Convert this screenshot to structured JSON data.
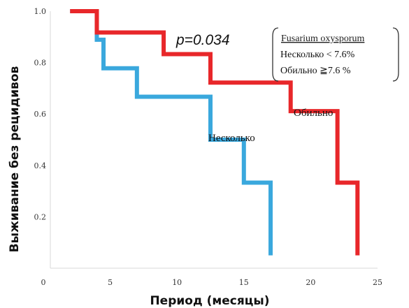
{
  "chart_data": {
    "type": "line",
    "step": true,
    "xlabel": "Период (месяцы)",
    "ylabel": "Выживание без рецидивов",
    "xlim": [
      0,
      25
    ],
    "ylim": [
      0,
      1.0
    ],
    "xticks": [
      "0",
      "5",
      "10",
      "15",
      "20",
      "25"
    ],
    "yticks": [
      "0.2",
      "0.4",
      "0.6",
      "0.8",
      "1.0"
    ],
    "annotation": "p=0.034",
    "legend": {
      "title": "Fusarium oxysporum",
      "rows": [
        "Несколько < 7.6%",
        "Обильно ≧7.6 %"
      ],
      "placement": "top-right"
    },
    "series": [
      {
        "name": "Обильно",
        "color": "#e8272a",
        "x": [
          2,
          4,
          9,
          12.5,
          18.5,
          22,
          23.5
        ],
        "y": [
          1.0,
          0.917,
          0.833,
          0.722,
          0.611,
          0.333,
          0.05
        ]
      },
      {
        "name": "Несколько",
        "color": "#3aa8dd",
        "x": [
          2,
          4,
          4.5,
          7,
          12.5,
          15,
          17
        ],
        "y": [
          1.0,
          0.889,
          0.778,
          0.667,
          0.5,
          0.333,
          0.05
        ]
      }
    ]
  }
}
